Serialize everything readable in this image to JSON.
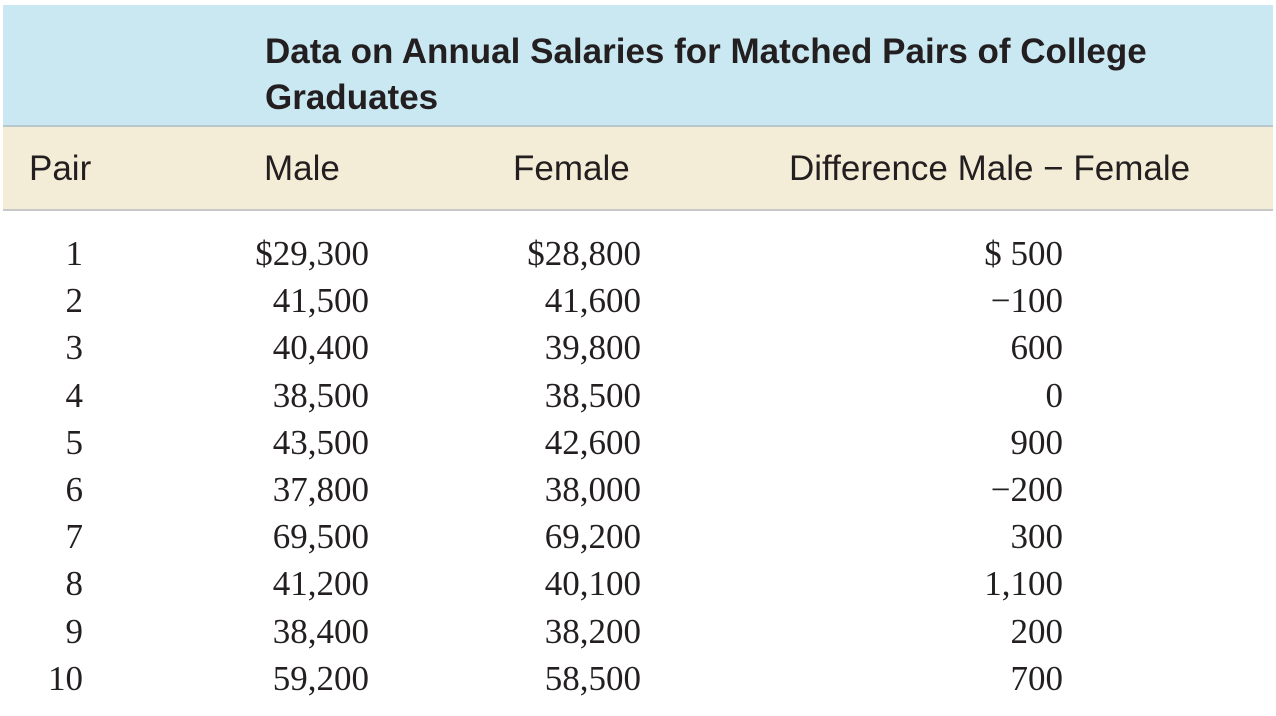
{
  "table": {
    "title": "Data on Annual Salaries for Matched Pairs of College Graduates",
    "headers": {
      "pair": "Pair",
      "male": "Male",
      "female": "Female",
      "difference": "Difference Male − Female"
    },
    "rows": [
      {
        "pair": "1",
        "male": "$29,300",
        "female": "$28,800",
        "difference": "$ 500"
      },
      {
        "pair": "2",
        "male": "41,500",
        "female": "41,600",
        "difference": "−100"
      },
      {
        "pair": "3",
        "male": "40,400",
        "female": "39,800",
        "difference": "600"
      },
      {
        "pair": "4",
        "male": "38,500",
        "female": "38,500",
        "difference": "0"
      },
      {
        "pair": "5",
        "male": "43,500",
        "female": "42,600",
        "difference": "900"
      },
      {
        "pair": "6",
        "male": "37,800",
        "female": "38,000",
        "difference": "−200"
      },
      {
        "pair": "7",
        "male": "69,500",
        "female": "69,200",
        "difference": "300"
      },
      {
        "pair": "8",
        "male": "41,200",
        "female": "40,100",
        "difference": "1,100"
      },
      {
        "pair": "9",
        "male": "38,400",
        "female": "38,200",
        "difference": "200"
      },
      {
        "pair": "10",
        "male": "59,200",
        "female": "58,500",
        "difference": "700"
      }
    ]
  },
  "colors": {
    "title_band": "#c9e8f1",
    "header_band": "#f3ecd6",
    "text": "#231f20"
  }
}
